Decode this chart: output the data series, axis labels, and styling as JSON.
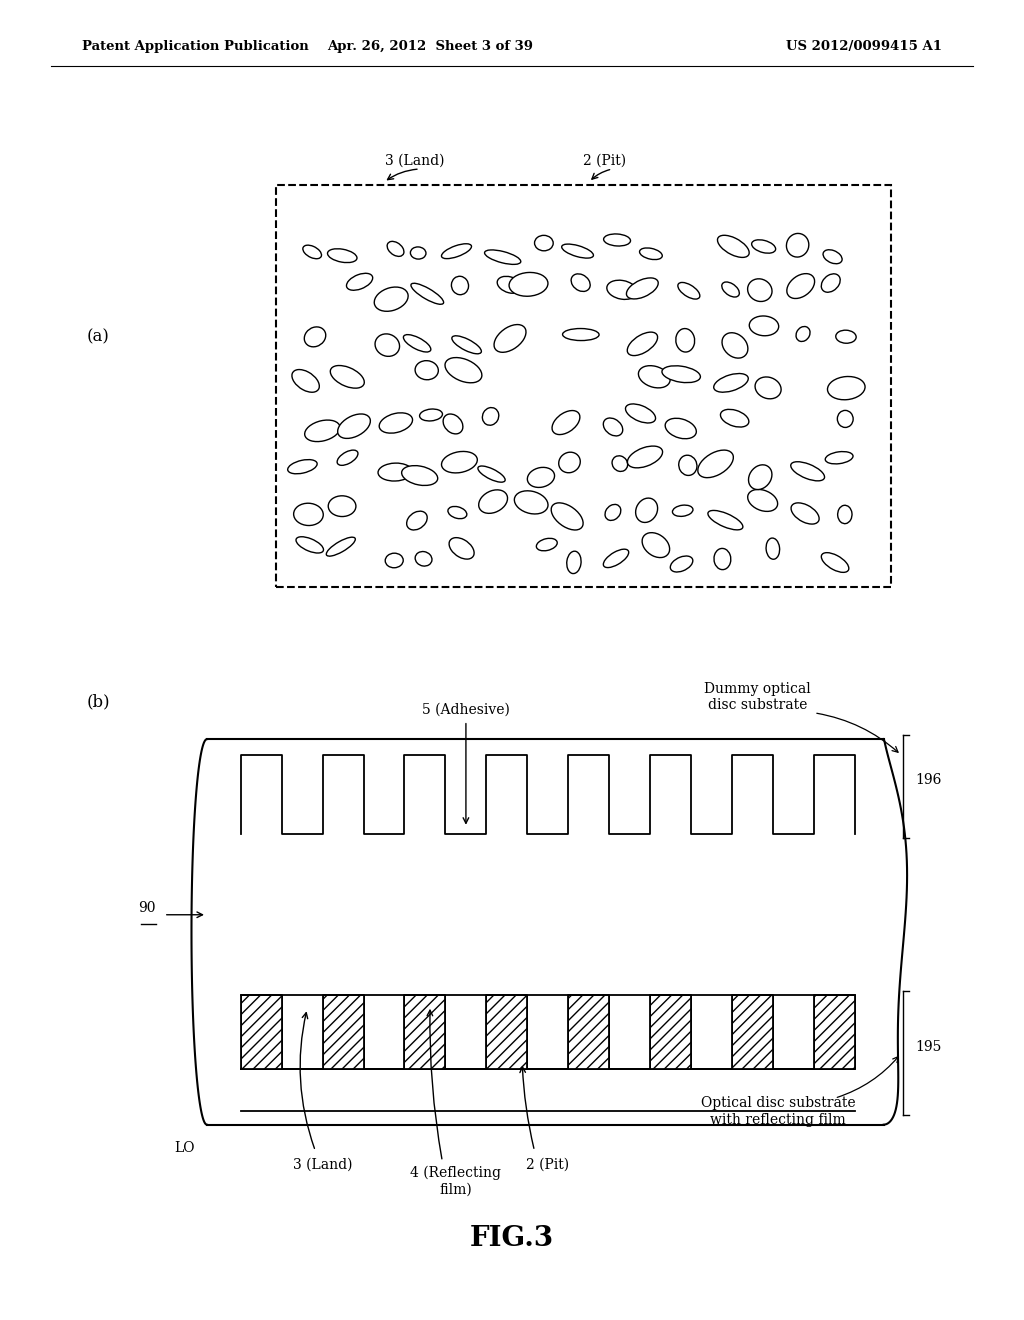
{
  "bg_color": "#ffffff",
  "header_left": "Patent Application Publication",
  "header_center": "Apr. 26, 2012  Sheet 3 of 39",
  "header_right": "US 2012/0099415 A1",
  "fig_label": "FIG.3",
  "label_a": "(a)",
  "label_b": "(b)",
  "diagram_a": {
    "label_land": "3 (Land)",
    "label_pit": "2 (Pit)"
  },
  "diagram_b": {
    "label_adhesive": "5 (Adhesive)",
    "label_land": "3 (Land)",
    "label_film": "4 (Reflecting\nfilm)",
    "label_pit": "2 (Pit)",
    "label_lo": "LO",
    "label_90": "90",
    "label_195": "195",
    "label_196": "196",
    "label_dummy": "Dummy optical\ndisc substrate",
    "label_optical": "Optical disc substrate\nwith reflecting film"
  }
}
